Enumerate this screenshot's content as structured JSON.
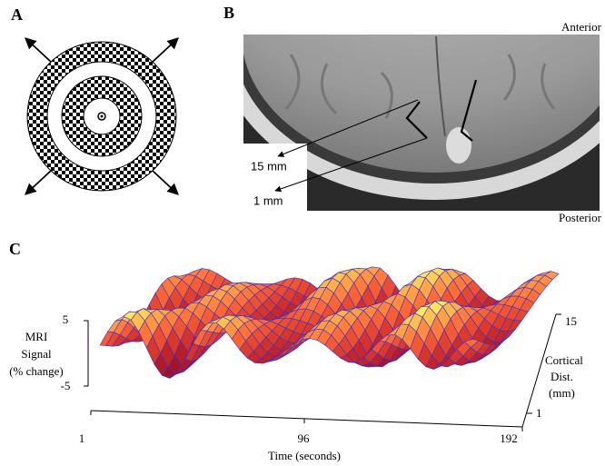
{
  "panels": {
    "a": {
      "letter": "A"
    },
    "b": {
      "letter": "B",
      "top_label": "Anterior",
      "bottom_label": "Posterior",
      "callouts": [
        "15 mm",
        "1 mm"
      ]
    },
    "c": {
      "letter": "C",
      "y_axis": {
        "label": [
          "MRI",
          "Signal",
          "(% change)"
        ],
        "ticks": [
          "5",
          "-5"
        ]
      },
      "x_axis": {
        "label": "Time (seconds)",
        "ticks": [
          "1",
          "96",
          "192"
        ]
      },
      "depth_axis": {
        "label": [
          "Cortical",
          "Dist.",
          "(mm)"
        ],
        "ticks": [
          "15",
          "1"
        ]
      }
    }
  }
}
